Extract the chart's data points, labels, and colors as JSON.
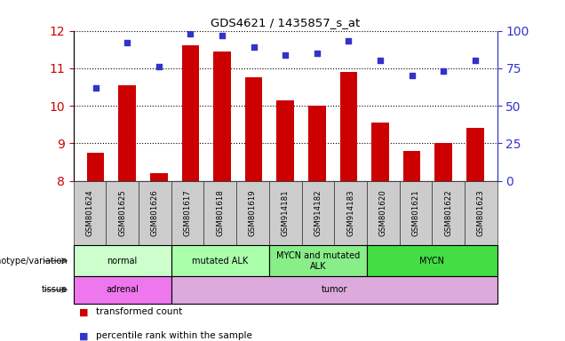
{
  "title": "GDS4621 / 1435857_s_at",
  "samples": [
    "GSM801624",
    "GSM801625",
    "GSM801626",
    "GSM801617",
    "GSM801618",
    "GSM801619",
    "GSM914181",
    "GSM914182",
    "GSM914183",
    "GSM801620",
    "GSM801621",
    "GSM801622",
    "GSM801623"
  ],
  "bar_values": [
    8.75,
    10.55,
    8.2,
    11.6,
    11.45,
    10.75,
    10.15,
    10.0,
    10.9,
    9.55,
    8.8,
    9.0,
    9.4
  ],
  "percentile_values": [
    62,
    92,
    76,
    98,
    97,
    89,
    84,
    85,
    93,
    80,
    70,
    73,
    80
  ],
  "ylim_left": [
    8,
    12
  ],
  "ylim_right": [
    0,
    100
  ],
  "yticks_left": [
    8,
    9,
    10,
    11,
    12
  ],
  "yticks_right": [
    0,
    25,
    50,
    75,
    100
  ],
  "bar_color": "#cc0000",
  "dot_color": "#3333cc",
  "bar_width": 0.55,
  "groups": [
    {
      "label": "normal",
      "start": 0,
      "end": 3,
      "color": "#ccffcc"
    },
    {
      "label": "mutated ALK",
      "start": 3,
      "end": 6,
      "color": "#aaffaa"
    },
    {
      "label": "MYCN and mutated\nALK",
      "start": 6,
      "end": 9,
      "color": "#88ee88"
    },
    {
      "label": "MYCN",
      "start": 9,
      "end": 13,
      "color": "#44dd44"
    }
  ],
  "tissues": [
    {
      "label": "adrenal",
      "start": 0,
      "end": 3,
      "color": "#ee77ee"
    },
    {
      "label": "tumor",
      "start": 3,
      "end": 13,
      "color": "#ddaadd"
    }
  ],
  "ylabel_left_color": "#cc0000",
  "ylabel_right_color": "#3333cc",
  "tick_bg_color": "#cccccc",
  "tick_edge_color": "#333333"
}
